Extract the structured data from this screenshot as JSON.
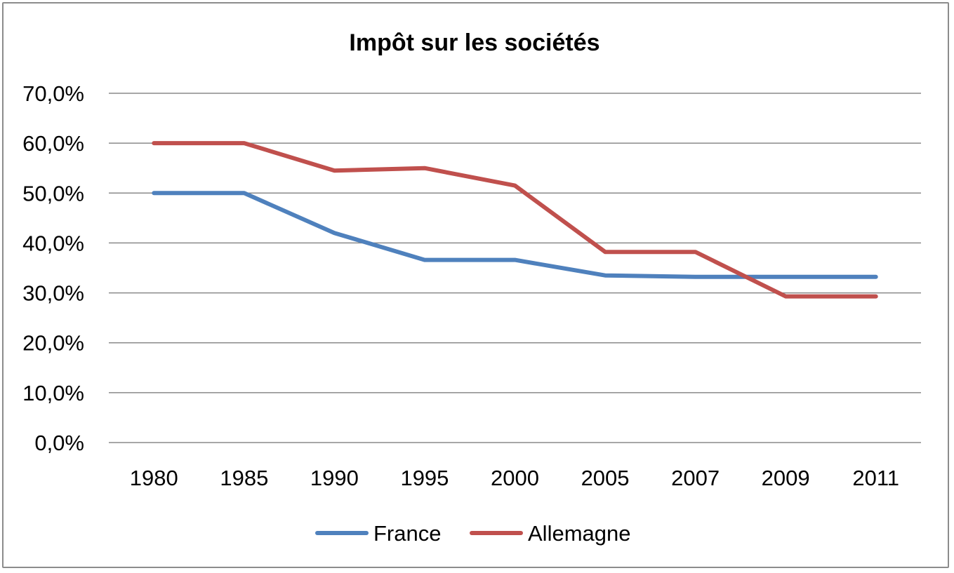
{
  "chart_data": {
    "type": "line",
    "title": "Impôt sur les sociétés",
    "xlabel": "",
    "ylabel": "",
    "categories": [
      "1980",
      "1985",
      "1990",
      "1995",
      "2000",
      "2005",
      "2007",
      "2009",
      "2011"
    ],
    "ylim": [
      0,
      70
    ],
    "yticks": [
      "0,0%",
      "10,0%",
      "20,0%",
      "30,0%",
      "40,0%",
      "50,0%",
      "60,0%",
      "70,0%"
    ],
    "grid": true,
    "legend_position": "bottom",
    "series": [
      {
        "name": "France",
        "color": "#4f81bd",
        "values": [
          50.0,
          50.0,
          42.0,
          36.6,
          36.6,
          33.5,
          33.2,
          33.2,
          33.2
        ]
      },
      {
        "name": "Allemagne",
        "color": "#c0504d",
        "values": [
          60.0,
          60.0,
          54.5,
          55.0,
          51.5,
          38.2,
          38.2,
          29.3,
          29.3
        ]
      }
    ]
  }
}
